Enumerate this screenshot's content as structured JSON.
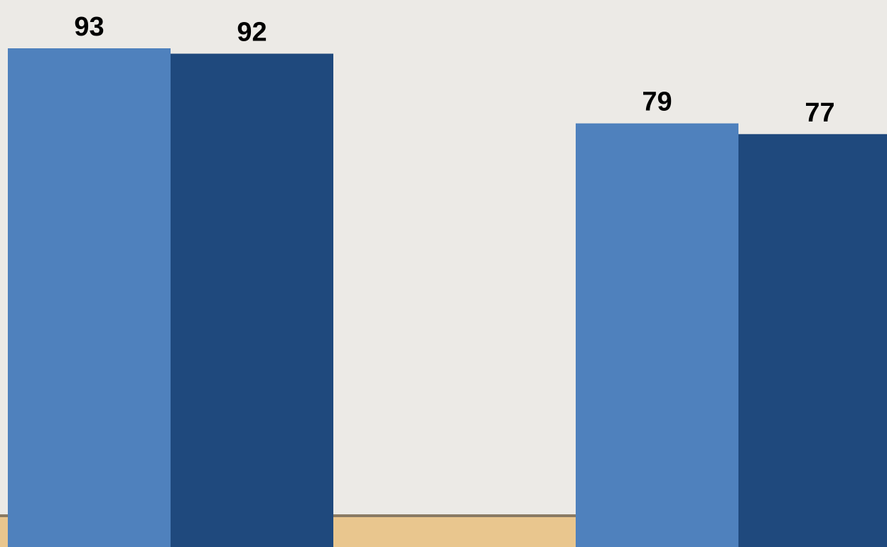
{
  "chart_data": {
    "type": "bar",
    "categories": [
      "",
      ""
    ],
    "series": [
      {
        "values": [
          93,
          79
        ]
      },
      {
        "values": [
          92,
          77
        ]
      }
    ],
    "title": "",
    "xlabel": "",
    "ylabel": "",
    "ylim": [
      0,
      100
    ],
    "data_labels": true,
    "grid": false,
    "colors": [
      "#4F81BD",
      "#1F497D"
    ]
  },
  "colors": {
    "background": "#ECEAE6",
    "floor": "#E9C68E",
    "floor_edge": "#8A7A63"
  }
}
